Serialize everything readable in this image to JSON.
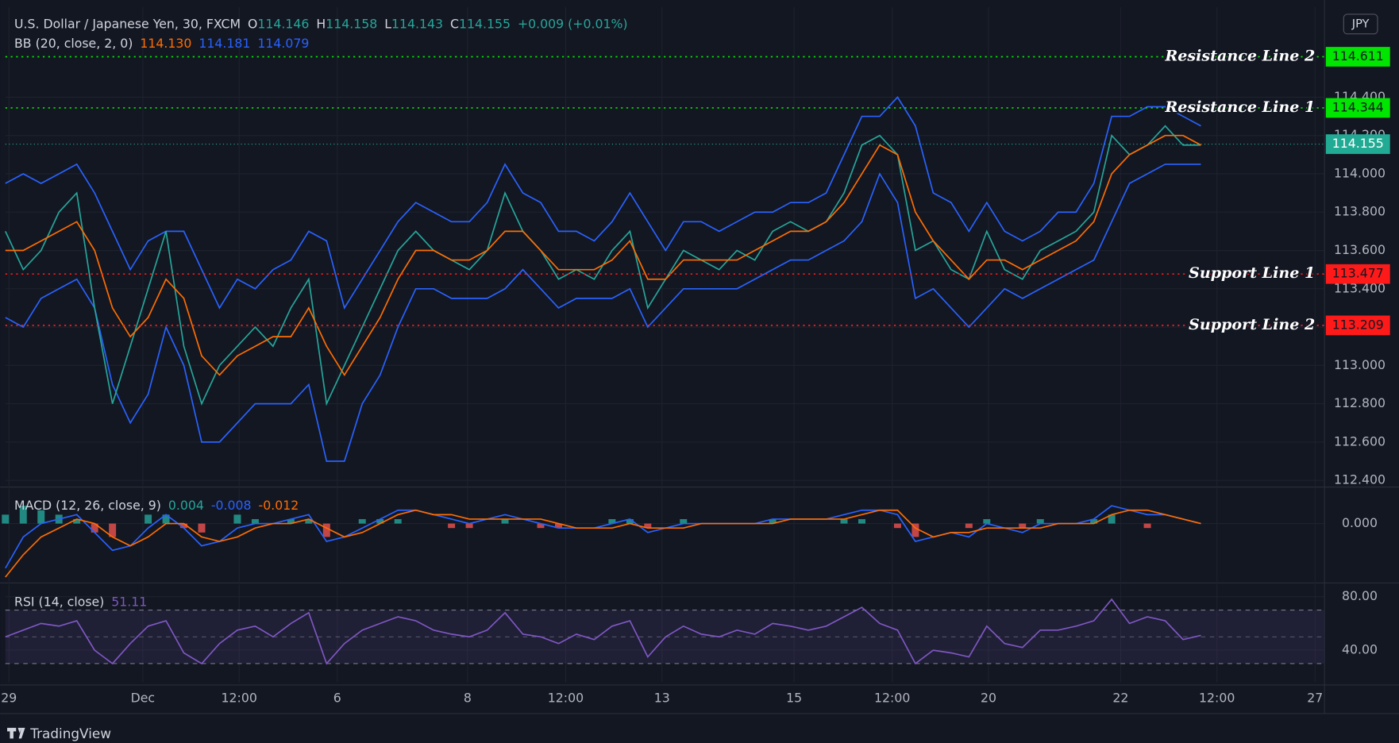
{
  "chart_data": [
    {
      "type": "line",
      "title": "U.S. Dollar / Japanese Yen, 30, FXCM",
      "ohlc": [
        {
          "label": "O",
          "value": 114.146
        },
        {
          "label": "H",
          "value": 114.158
        },
        {
          "label": "L",
          "value": 114.143
        },
        {
          "label": "C",
          "value": 114.155
        }
      ],
      "change": "+0.009 (+0.01%)",
      "indicator": "BB (20, close, 2, 0)",
      "indicator_values": [
        {
          "text": "114.130",
          "color": "#ff6d00"
        },
        {
          "text": "114.181",
          "color": "#2962ff"
        },
        {
          "text": "114.079",
          "color": "#2962ff"
        }
      ],
      "currency": "JPY",
      "grid": true,
      "xlim": [
        0,
        73.9
      ],
      "xticks": [
        {
          "value": 0.2,
          "label": "29"
        },
        {
          "value": 7.7,
          "label": "Dec"
        },
        {
          "value": 13.1,
          "label": "12:00"
        },
        {
          "value": 18.6,
          "label": "6"
        },
        {
          "value": 25.9,
          "label": "8"
        },
        {
          "value": 31.4,
          "label": "12:00"
        },
        {
          "value": 36.8,
          "label": "13"
        },
        {
          "value": 44.2,
          "label": "15"
        },
        {
          "value": 49.7,
          "label": "12:00"
        },
        {
          "value": 55.1,
          "label": "20"
        },
        {
          "value": 62.5,
          "label": "22"
        },
        {
          "value": 67.9,
          "label": "12:00"
        },
        {
          "value": 73.4,
          "label": "27"
        }
      ],
      "ylim": [
        112.37,
        114.87
      ],
      "yticks": [
        {
          "value": 112.4,
          "label": "112.400"
        },
        {
          "value": 112.6,
          "label": "112.600"
        },
        {
          "value": 112.8,
          "label": "112.800"
        },
        {
          "value": 113.0,
          "label": "113.000"
        },
        {
          "value": 113.2,
          "label": "113.200"
        },
        {
          "value": 113.4,
          "label": "113.400"
        },
        {
          "value": 113.6,
          "label": "113.600"
        },
        {
          "value": 113.8,
          "label": "113.800"
        },
        {
          "value": 114.0,
          "label": "114.000"
        },
        {
          "value": 114.2,
          "label": "114.200"
        },
        {
          "value": 114.4,
          "label": "114.400"
        }
      ],
      "x": [
        0,
        1,
        2,
        3,
        4,
        5,
        6,
        7,
        8,
        9,
        10,
        11,
        12,
        13,
        14,
        15,
        16,
        17,
        18,
        19,
        20,
        21,
        22,
        23,
        24,
        25,
        26,
        27,
        28,
        29,
        30,
        31,
        32,
        33,
        34,
        35,
        36,
        37,
        38,
        39,
        40,
        41,
        42,
        43,
        44,
        45,
        46,
        47,
        48,
        49,
        50,
        51,
        52,
        53,
        54,
        55,
        56,
        57,
        58,
        59,
        60,
        61,
        62,
        63,
        64,
        65,
        66,
        67
      ],
      "series": [
        {
          "color": "#2962ff",
          "values": [
            113.95,
            114.0,
            113.95,
            114.0,
            114.05,
            113.9,
            113.7,
            113.5,
            113.65,
            113.7,
            113.7,
            113.5,
            113.3,
            113.45,
            113.4,
            113.5,
            113.55,
            113.7,
            113.65,
            113.3,
            113.45,
            113.6,
            113.75,
            113.85,
            113.8,
            113.75,
            113.75,
            113.85,
            114.05,
            113.9,
            113.85,
            113.7,
            113.7,
            113.65,
            113.75,
            113.9,
            113.75,
            113.6,
            113.75,
            113.75,
            113.7,
            113.75,
            113.8,
            113.8,
            113.85,
            113.85,
            113.9,
            114.1,
            114.3,
            114.3,
            114.4,
            114.25,
            113.9,
            113.85,
            113.7,
            113.85,
            113.7,
            113.65,
            113.7,
            113.8,
            113.8,
            113.95,
            114.3,
            114.3,
            114.35,
            114.35,
            114.3,
            114.25
          ]
        },
        {
          "color": "#2962ff",
          "values": [
            113.25,
            113.2,
            113.35,
            113.4,
            113.45,
            113.3,
            112.9,
            112.7,
            112.85,
            113.2,
            113.0,
            112.6,
            112.6,
            112.7,
            112.8,
            112.8,
            112.8,
            112.9,
            112.5,
            112.5,
            112.8,
            112.95,
            113.2,
            113.4,
            113.4,
            113.35,
            113.35,
            113.35,
            113.4,
            113.5,
            113.4,
            113.3,
            113.35,
            113.35,
            113.35,
            113.4,
            113.2,
            113.3,
            113.4,
            113.4,
            113.4,
            113.4,
            113.45,
            113.5,
            113.55,
            113.55,
            113.6,
            113.65,
            113.75,
            114.0,
            113.85,
            113.35,
            113.4,
            113.3,
            113.2,
            113.3,
            113.4,
            113.35,
            113.4,
            113.45,
            113.5,
            113.55,
            113.75,
            113.95,
            114.0,
            114.05,
            114.05,
            114.05
          ]
        },
        {
          "color": "#26a69a",
          "values": [
            113.7,
            113.5,
            113.6,
            113.8,
            113.9,
            113.3,
            112.8,
            113.1,
            113.4,
            113.7,
            113.1,
            112.8,
            113.0,
            113.1,
            113.2,
            113.1,
            113.3,
            113.45,
            112.8,
            113.0,
            113.2,
            113.4,
            113.6,
            113.7,
            113.6,
            113.55,
            113.5,
            113.6,
            113.9,
            113.7,
            113.6,
            113.45,
            113.5,
            113.45,
            113.6,
            113.7,
            113.3,
            113.45,
            113.6,
            113.55,
            113.5,
            113.6,
            113.55,
            113.7,
            113.75,
            113.7,
            113.75,
            113.9,
            114.15,
            114.2,
            114.1,
            113.6,
            113.65,
            113.5,
            113.45,
            113.7,
            113.5,
            113.45,
            113.6,
            113.65,
            113.7,
            113.8,
            114.2,
            114.1,
            114.15,
            114.25,
            114.15,
            114.15
          ]
        },
        {
          "color": "#ff6d00",
          "values": [
            113.6,
            113.6,
            113.65,
            113.7,
            113.75,
            113.6,
            113.3,
            113.15,
            113.25,
            113.45,
            113.35,
            113.05,
            112.95,
            113.05,
            113.1,
            113.15,
            113.15,
            113.3,
            113.1,
            112.95,
            113.1,
            113.25,
            113.45,
            113.6,
            113.6,
            113.55,
            113.55,
            113.6,
            113.7,
            113.7,
            113.6,
            113.5,
            113.5,
            113.5,
            113.55,
            113.65,
            113.45,
            113.45,
            113.55,
            113.55,
            113.55,
            113.55,
            113.6,
            113.65,
            113.7,
            113.7,
            113.75,
            113.85,
            114.0,
            114.15,
            114.1,
            113.8,
            113.65,
            113.55,
            113.45,
            113.55,
            113.55,
            113.5,
            113.55,
            113.6,
            113.65,
            113.75,
            114.0,
            114.1,
            114.15,
            114.2,
            114.2,
            114.15
          ]
        }
      ],
      "levels": [
        {
          "label": "Resistance Line 2",
          "value": 114.611,
          "color": "#00e600"
        },
        {
          "label": "Resistance Line 1",
          "value": 114.344,
          "color": "#00e600"
        },
        {
          "label": "Support Line 1",
          "value": 113.477,
          "color": "#ff1a1a"
        },
        {
          "label": "Support Line 2",
          "value": 113.209,
          "color": "#ff1a1a"
        }
      ],
      "last_price": {
        "value": 114.155,
        "color": "#22ab94"
      }
    },
    {
      "type": "line",
      "title": "MACD (12, 26, close, 9)",
      "indicator_values": [
        {
          "text": "0.004",
          "color": "#26a69a"
        },
        {
          "text": "-0.008",
          "color": "#2962ff"
        },
        {
          "text": "-0.012",
          "color": "#ff6d00"
        }
      ],
      "grid": true,
      "xlim": [
        0,
        73.9
      ],
      "ylim": [
        -0.13,
        0.08
      ],
      "yticks": [
        {
          "value": 0,
          "label": "0.000"
        }
      ],
      "x": [
        0,
        1,
        2,
        3,
        4,
        5,
        6,
        7,
        8,
        9,
        10,
        11,
        12,
        13,
        14,
        15,
        16,
        17,
        18,
        19,
        20,
        21,
        22,
        23,
        24,
        25,
        26,
        27,
        28,
        29,
        30,
        31,
        32,
        33,
        34,
        35,
        36,
        37,
        38,
        39,
        40,
        41,
        42,
        43,
        44,
        45,
        46,
        47,
        48,
        49,
        50,
        51,
        52,
        53,
        54,
        55,
        56,
        57,
        58,
        59,
        60,
        61,
        62,
        63,
        64,
        65,
        66,
        67
      ],
      "series": [
        {
          "type": "histogram",
          "color": "#26a69a",
          "negative_color": "#ef5350",
          "values": [
            0.02,
            0.04,
            0.03,
            0.02,
            0.01,
            -0.02,
            -0.03,
            0,
            0.02,
            0.02,
            -0.01,
            -0.02,
            0,
            0.02,
            0.01,
            0,
            0.01,
            0.01,
            -0.03,
            0,
            0.01,
            0.01,
            0.01,
            0,
            0,
            -0.01,
            -0.01,
            0,
            0.01,
            0,
            -0.01,
            -0.01,
            0,
            0,
            0.01,
            0.01,
            -0.01,
            0,
            0.01,
            0,
            0,
            0,
            0,
            0.01,
            0,
            0,
            0,
            0.01,
            0.01,
            0,
            -0.01,
            -0.03,
            0,
            0,
            -0.01,
            0.01,
            0,
            -0.01,
            0.01,
            0,
            0,
            0.01,
            0.02,
            0,
            -0.01,
            0,
            0,
            0
          ]
        },
        {
          "color": "#2962ff",
          "values": [
            -0.1,
            -0.03,
            0,
            0.01,
            0.02,
            -0.02,
            -0.06,
            -0.05,
            -0.01,
            0.02,
            -0.01,
            -0.05,
            -0.04,
            -0.01,
            0,
            0,
            0.01,
            0.02,
            -0.04,
            -0.03,
            -0.01,
            0.01,
            0.03,
            0.03,
            0.02,
            0.01,
            0,
            0.01,
            0.02,
            0.01,
            0,
            -0.01,
            -0.01,
            -0.01,
            0,
            0.01,
            -0.02,
            -0.01,
            0,
            0,
            0,
            0,
            0,
            0.01,
            0.01,
            0.01,
            0.01,
            0.02,
            0.03,
            0.03,
            0.02,
            -0.04,
            -0.03,
            -0.02,
            -0.03,
            0,
            -0.01,
            -0.02,
            0,
            0,
            0,
            0.01,
            0.04,
            0.03,
            0.02,
            0.02,
            0.01,
            0
          ]
        },
        {
          "color": "#ff6d00",
          "values": [
            -0.12,
            -0.07,
            -0.03,
            -0.01,
            0.01,
            0,
            -0.03,
            -0.05,
            -0.03,
            0,
            0,
            -0.03,
            -0.04,
            -0.03,
            -0.01,
            0,
            0,
            0.01,
            -0.01,
            -0.03,
            -0.02,
            0,
            0.02,
            0.03,
            0.02,
            0.02,
            0.01,
            0.01,
            0.01,
            0.01,
            0.01,
            0,
            -0.01,
            -0.01,
            -0.01,
            0,
            -0.01,
            -0.01,
            -0.01,
            0,
            0,
            0,
            0,
            0,
            0.01,
            0.01,
            0.01,
            0.01,
            0.02,
            0.03,
            0.03,
            -0.01,
            -0.03,
            -0.02,
            -0.02,
            -0.01,
            -0.01,
            -0.01,
            -0.01,
            0,
            0,
            0,
            0.02,
            0.03,
            0.03,
            0.02,
            0.01,
            0
          ]
        }
      ]
    },
    {
      "type": "line",
      "title": "RSI (14, close)",
      "indicator_values": [
        {
          "text": "51.11",
          "color": "#7e57c2"
        }
      ],
      "grid": true,
      "xlim": [
        0,
        73.9
      ],
      "ylim": [
        16,
        89.3
      ],
      "yticks": [
        {
          "value": 80,
          "label": "80.00"
        },
        {
          "value": 40,
          "label": "40.00"
        }
      ],
      "band": [
        30,
        70
      ],
      "midline": 50,
      "band_color": "rgba(126,87,194,0.12)",
      "x": [
        0,
        1,
        2,
        3,
        4,
        5,
        6,
        7,
        8,
        9,
        10,
        11,
        12,
        13,
        14,
        15,
        16,
        17,
        18,
        19,
        20,
        21,
        22,
        23,
        24,
        25,
        26,
        27,
        28,
        29,
        30,
        31,
        32,
        33,
        34,
        35,
        36,
        37,
        38,
        39,
        40,
        41,
        42,
        43,
        44,
        45,
        46,
        47,
        48,
        49,
        50,
        51,
        52,
        53,
        54,
        55,
        56,
        57,
        58,
        59,
        60,
        61,
        62,
        63,
        64,
        65,
        66,
        67
      ],
      "series": [
        {
          "color": "#7e57c2",
          "values": [
            50,
            55,
            60,
            58,
            62,
            40,
            30,
            45,
            58,
            62,
            38,
            30,
            45,
            55,
            58,
            50,
            60,
            68,
            30,
            45,
            55,
            60,
            65,
            62,
            55,
            52,
            50,
            55,
            68,
            52,
            50,
            45,
            52,
            48,
            58,
            62,
            35,
            50,
            58,
            52,
            50,
            55,
            52,
            60,
            58,
            55,
            58,
            65,
            72,
            60,
            55,
            30,
            40,
            38,
            35,
            58,
            45,
            42,
            55,
            55,
            58,
            62,
            78,
            60,
            65,
            62,
            48,
            51.11
          ]
        }
      ]
    }
  ],
  "footer": {
    "brand": "TradingView"
  }
}
